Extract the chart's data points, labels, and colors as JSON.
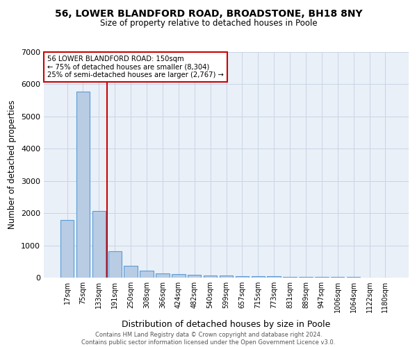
{
  "title": "56, LOWER BLANDFORD ROAD, BROADSTONE, BH18 8NY",
  "subtitle": "Size of property relative to detached houses in Poole",
  "xlabel": "Distribution of detached houses by size in Poole",
  "ylabel": "Number of detached properties",
  "footer_line1": "Contains HM Land Registry data © Crown copyright and database right 2024.",
  "footer_line2": "Contains public sector information licensed under the Open Government Licence v3.0.",
  "categories": [
    "17sqm",
    "75sqm",
    "133sqm",
    "191sqm",
    "250sqm",
    "308sqm",
    "366sqm",
    "424sqm",
    "482sqm",
    "540sqm",
    "599sqm",
    "657sqm",
    "715sqm",
    "773sqm",
    "831sqm",
    "889sqm",
    "947sqm",
    "1006sqm",
    "1064sqm",
    "1122sqm",
    "1180sqm"
  ],
  "values": [
    1780,
    5780,
    2060,
    820,
    370,
    215,
    130,
    100,
    85,
    75,
    60,
    50,
    42,
    35,
    28,
    22,
    18,
    14,
    11,
    8,
    6
  ],
  "bar_color": "#b8cce4",
  "bar_edge_color": "#5b9bd5",
  "background_color": "#eaf0f8",
  "grid_color": "#c8d4e4",
  "annotation_line1": "56 LOWER BLANDFORD ROAD: 150sqm",
  "annotation_line2": "← 75% of detached houses are smaller (8,304)",
  "annotation_line3": "25% of semi-detached houses are larger (2,767) →",
  "vline_color": "#cc0000",
  "annotation_box_color": "#ffffff",
  "annotation_box_edge": "#cc0000",
  "ylim": [
    0,
    7000
  ],
  "yticks": [
    0,
    1000,
    2000,
    3000,
    4000,
    5000,
    6000,
    7000
  ]
}
